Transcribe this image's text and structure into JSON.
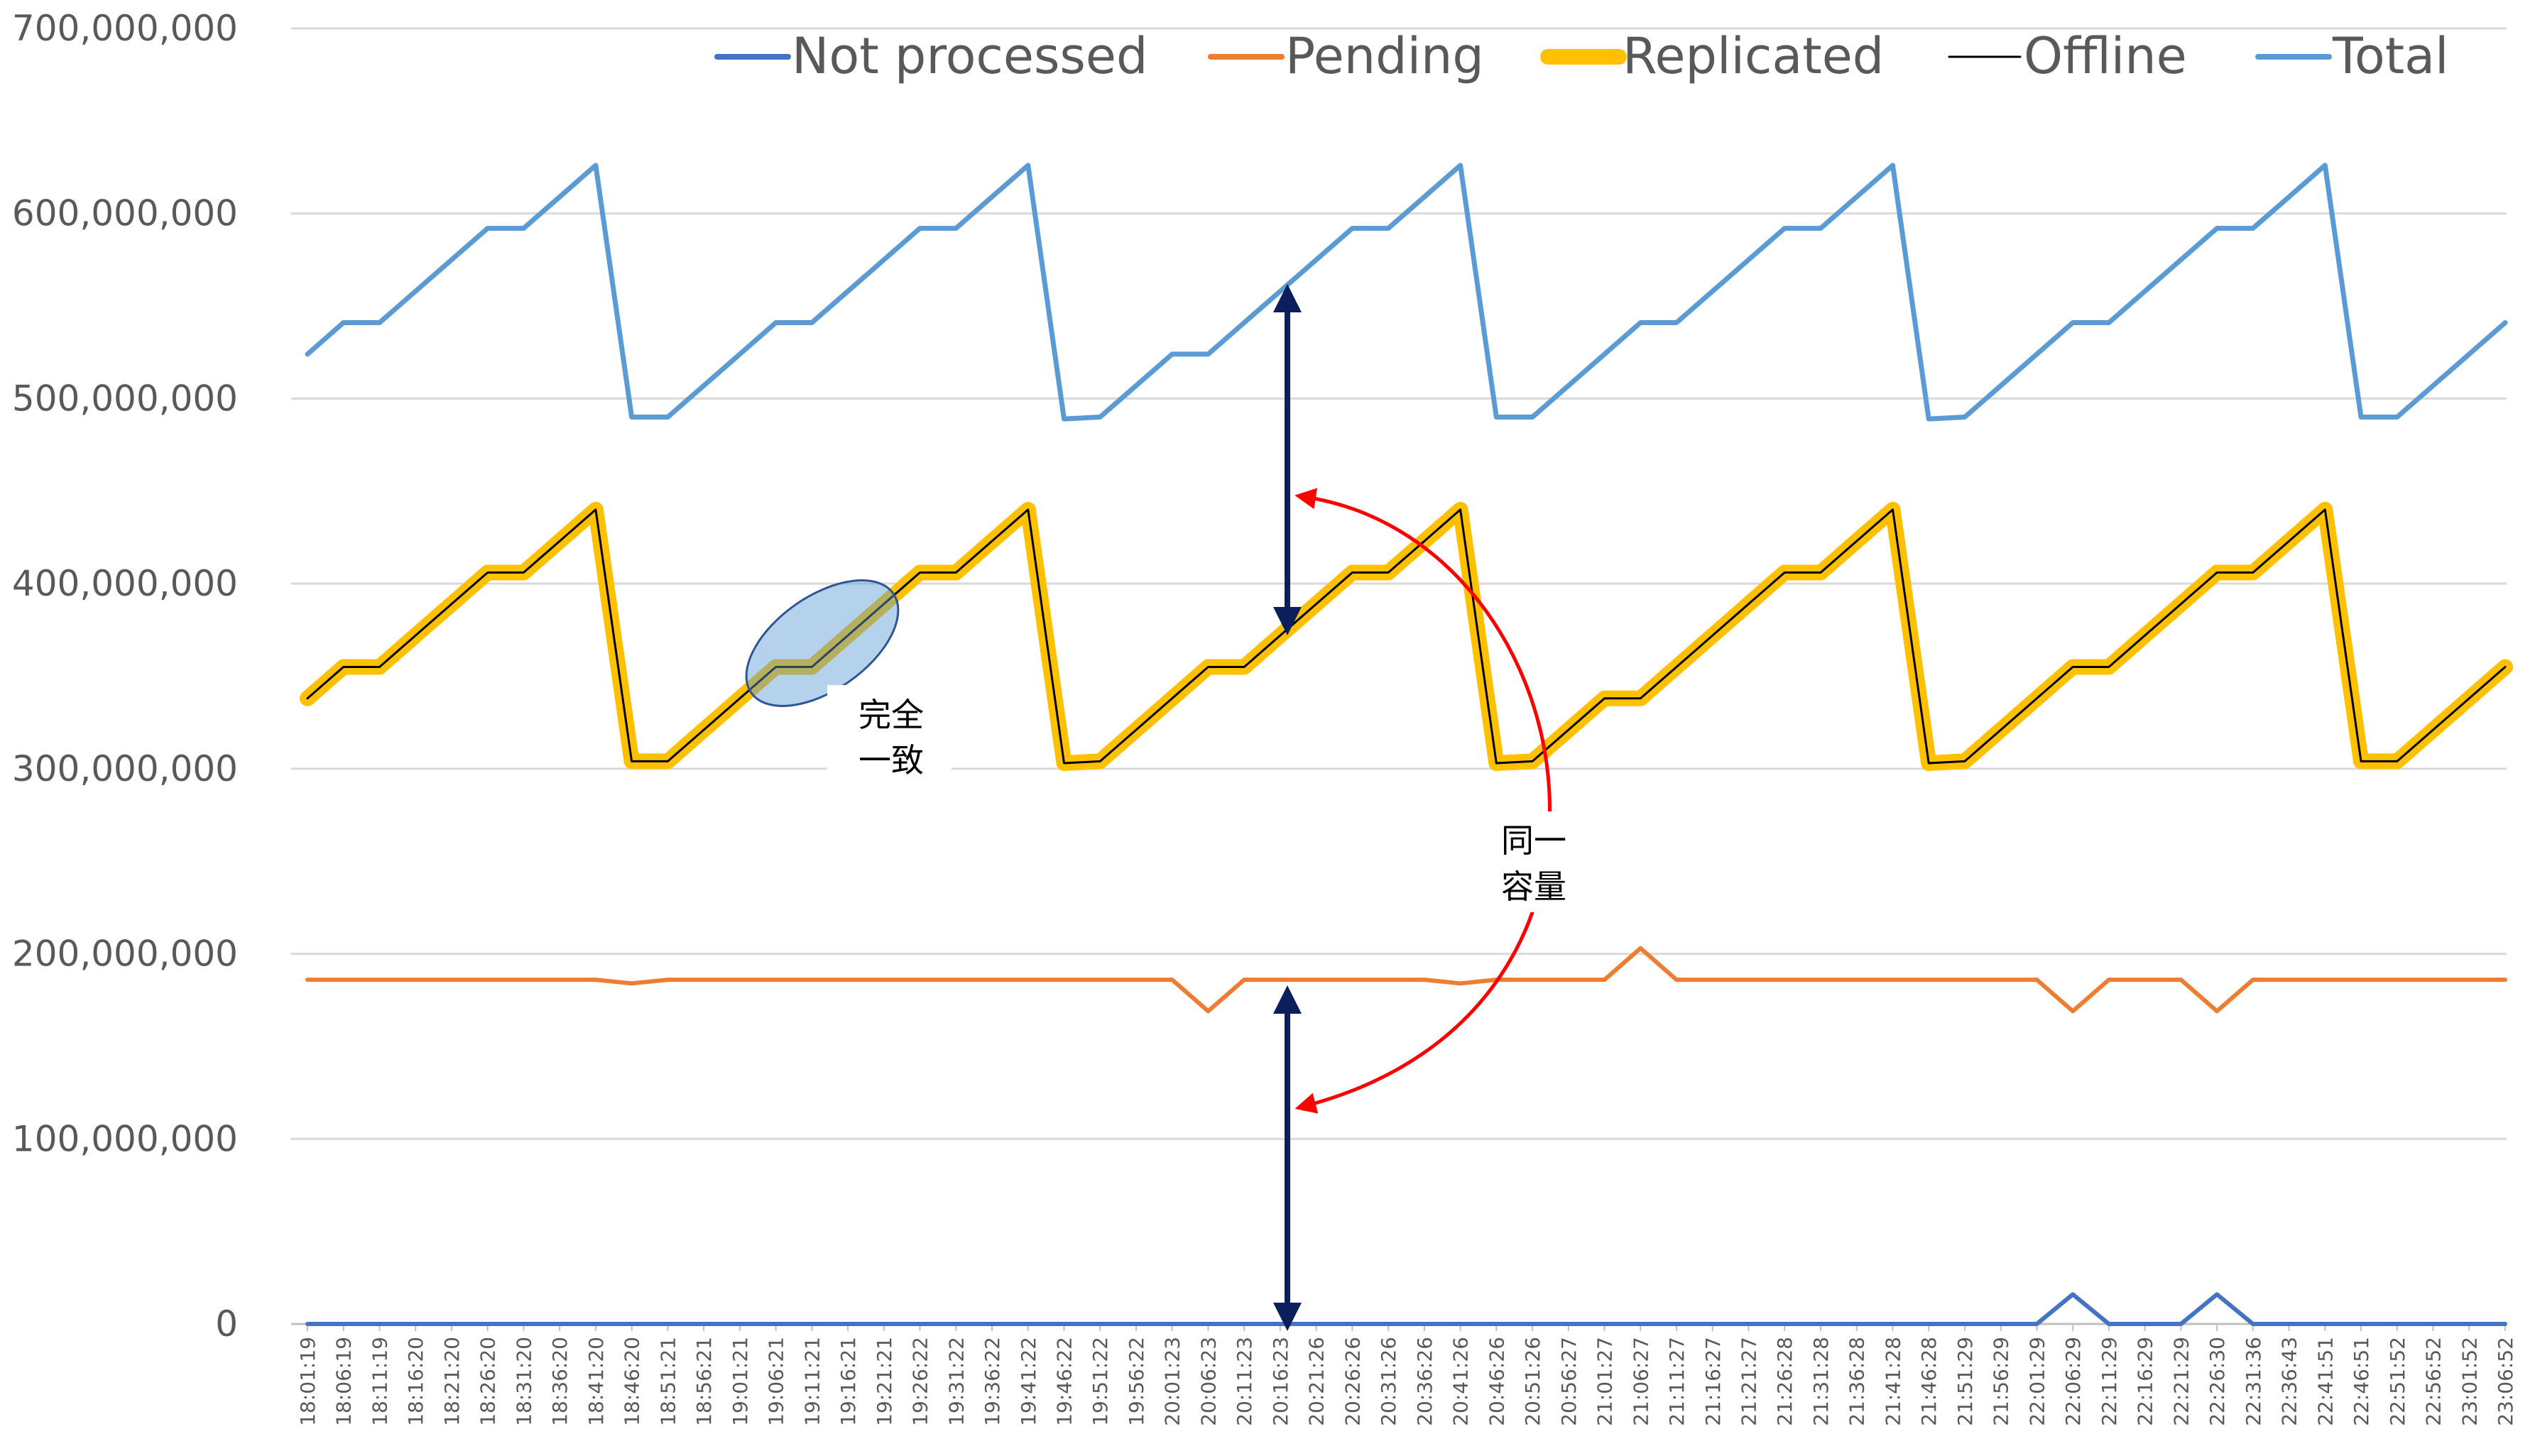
{
  "chart_data": {
    "type": "line",
    "title": "",
    "xlabel": "",
    "ylabel": "",
    "ylim": [
      0,
      700000000
    ],
    "yticks": [
      "0",
      "100,000,000",
      "200,000,000",
      "300,000,000",
      "400,000,000",
      "500,000,000",
      "600,000,000",
      "700,000,000"
    ],
    "ytick_values": [
      0,
      100000000,
      200000000,
      300000000,
      400000000,
      500000000,
      600000000,
      700000000
    ],
    "grid": "horizontal",
    "legend_position": "top",
    "categories": [
      "18:01:19",
      "18:06:19",
      "18:11:19",
      "18:16:20",
      "18:21:20",
      "18:26:20",
      "18:31:20",
      "18:36:20",
      "18:41:20",
      "18:46:20",
      "18:51:21",
      "18:56:21",
      "19:01:21",
      "19:06:21",
      "19:11:21",
      "19:16:21",
      "19:21:21",
      "19:26:22",
      "19:31:22",
      "19:36:22",
      "19:41:22",
      "19:46:22",
      "19:51:22",
      "19:56:22",
      "20:01:23",
      "20:06:23",
      "20:11:23",
      "20:16:23",
      "20:21:26",
      "20:26:26",
      "20:31:26",
      "20:36:26",
      "20:41:26",
      "20:46:26",
      "20:51:26",
      "20:56:27",
      "21:01:27",
      "21:06:27",
      "21:11:27",
      "21:16:27",
      "21:21:27",
      "21:26:28",
      "21:31:28",
      "21:36:28",
      "21:41:28",
      "21:46:28",
      "21:51:29",
      "21:56:29",
      "22:01:29",
      "22:06:29",
      "22:11:29",
      "22:16:29",
      "22:21:29",
      "22:26:30",
      "22:31:36",
      "22:36:43",
      "22:41:51",
      "22:46:51",
      "22:51:52",
      "22:56:52",
      "23:01:52",
      "23:06:52"
    ],
    "series": [
      {
        "name": "Not processed",
        "color": "#4472C4",
        "values": [
          0,
          0,
          0,
          0,
          0,
          0,
          0,
          0,
          0,
          0,
          0,
          0,
          0,
          0,
          0,
          0,
          0,
          0,
          0,
          0,
          0,
          0,
          0,
          0,
          0,
          0,
          0,
          0,
          0,
          0,
          0,
          0,
          0,
          0,
          0,
          0,
          0,
          0,
          0,
          0,
          0,
          0,
          0,
          0,
          0,
          0,
          0,
          0,
          0,
          16000000,
          0,
          0,
          0,
          16000000,
          0,
          0,
          0,
          0,
          0,
          0,
          0,
          0
        ]
      },
      {
        "name": "Pending",
        "color": "#ED7D31",
        "values": [
          186000000,
          186000000,
          186000000,
          186000000,
          186000000,
          186000000,
          186000000,
          186000000,
          186000000,
          184000000,
          186000000,
          186000000,
          186000000,
          186000000,
          186000000,
          186000000,
          186000000,
          186000000,
          186000000,
          186000000,
          186000000,
          186000000,
          186000000,
          186000000,
          186000000,
          169000000,
          186000000,
          186000000,
          186000000,
          186000000,
          186000000,
          186000000,
          184000000,
          186000000,
          186000000,
          186000000,
          186000000,
          203000000,
          186000000,
          186000000,
          186000000,
          186000000,
          186000000,
          186000000,
          186000000,
          186000000,
          186000000,
          186000000,
          186000000,
          169000000,
          186000000,
          186000000,
          186000000,
          169000000,
          186000000,
          186000000,
          186000000,
          186000000,
          186000000,
          186000000,
          186000000,
          186000000
        ]
      },
      {
        "name": "Replicated",
        "color": "#FFC000",
        "values": [
          338000000,
          355000000,
          355000000,
          372000000,
          389000000,
          406000000,
          406000000,
          423000000,
          440000000,
          304000000,
          304000000,
          321000000,
          338000000,
          355000000,
          355000000,
          372000000,
          389000000,
          406000000,
          406000000,
          423000000,
          440000000,
          303000000,
          304000000,
          321000000,
          338000000,
          355000000,
          355000000,
          372000000,
          389000000,
          406000000,
          406000000,
          423000000,
          440000000,
          303000000,
          304000000,
          321000000,
          338000000,
          338000000,
          355000000,
          372000000,
          389000000,
          406000000,
          406000000,
          423000000,
          440000000,
          303000000,
          304000000,
          321000000,
          338000000,
          355000000,
          355000000,
          372000000,
          389000000,
          406000000,
          406000000,
          423000000,
          440000000,
          304000000,
          304000000,
          321000000,
          338000000,
          355000000
        ]
      },
      {
        "name": "Offline",
        "color": "#000000",
        "values": [
          338000000,
          355000000,
          355000000,
          372000000,
          389000000,
          406000000,
          406000000,
          423000000,
          440000000,
          304000000,
          304000000,
          321000000,
          338000000,
          355000000,
          355000000,
          372000000,
          389000000,
          406000000,
          406000000,
          423000000,
          440000000,
          303000000,
          304000000,
          321000000,
          338000000,
          355000000,
          355000000,
          372000000,
          389000000,
          406000000,
          406000000,
          423000000,
          440000000,
          303000000,
          304000000,
          321000000,
          338000000,
          338000000,
          355000000,
          372000000,
          389000000,
          406000000,
          406000000,
          423000000,
          440000000,
          303000000,
          304000000,
          321000000,
          338000000,
          355000000,
          355000000,
          372000000,
          389000000,
          406000000,
          406000000,
          423000000,
          440000000,
          304000000,
          304000000,
          321000000,
          338000000,
          355000000
        ]
      },
      {
        "name": "Total",
        "color": "#5B9BD5",
        "values": [
          524000000,
          541000000,
          541000000,
          558000000,
          575000000,
          592000000,
          592000000,
          609000000,
          626000000,
          490000000,
          490000000,
          507000000,
          524000000,
          541000000,
          541000000,
          558000000,
          575000000,
          592000000,
          592000000,
          609000000,
          626000000,
          489000000,
          490000000,
          507000000,
          524000000,
          524000000,
          541000000,
          558000000,
          575000000,
          592000000,
          592000000,
          609000000,
          626000000,
          490000000,
          490000000,
          507000000,
          524000000,
          541000000,
          541000000,
          558000000,
          575000000,
          592000000,
          592000000,
          609000000,
          626000000,
          489000000,
          490000000,
          507000000,
          524000000,
          541000000,
          541000000,
          558000000,
          575000000,
          592000000,
          592000000,
          609000000,
          626000000,
          490000000,
          490000000,
          507000000,
          524000000,
          541000000
        ]
      }
    ],
    "annotations": {
      "ellipse_label_line1": "完全",
      "ellipse_label_line2": "一致",
      "arc_label_line1": "同一",
      "arc_label_line2": "容量"
    }
  }
}
